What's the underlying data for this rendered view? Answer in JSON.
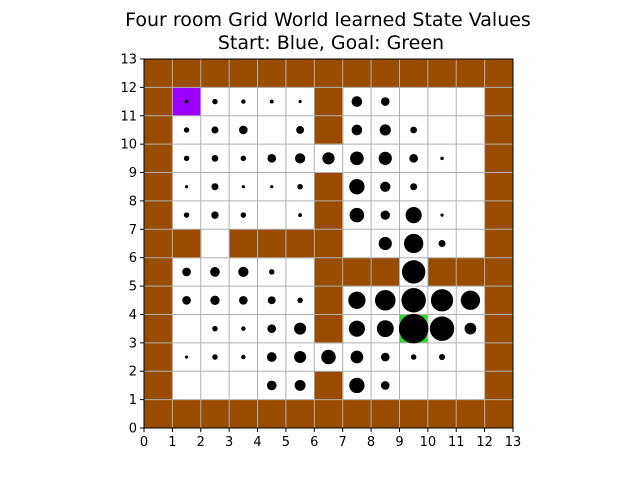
{
  "chart_data": {
    "type": "heatmap",
    "title_line1": "Four room Grid World learned State Values",
    "title_line2": "Start: Blue, Goal: Green",
    "xlim": [
      0,
      13
    ],
    "ylim": [
      0,
      13
    ],
    "x_ticks": [
      "0",
      "1",
      "2",
      "3",
      "4",
      "5",
      "6",
      "7",
      "8",
      "9",
      "10",
      "11",
      "12",
      "13"
    ],
    "y_ticks": [
      "0",
      "1",
      "2",
      "3",
      "4",
      "5",
      "6",
      "7",
      "8",
      "9",
      "10",
      "11",
      "12",
      "13"
    ],
    "grid": true,
    "colors": {
      "wall": "#994c00",
      "start": "#9b00ff",
      "goal": "#22e022",
      "gridline": "#b0b0b0",
      "marker": "#000000"
    },
    "start_cell": [
      1,
      11
    ],
    "goal_cell": [
      9,
      3
    ],
    "walls": [
      [
        0,
        0
      ],
      [
        1,
        0
      ],
      [
        2,
        0
      ],
      [
        3,
        0
      ],
      [
        4,
        0
      ],
      [
        5,
        0
      ],
      [
        6,
        0
      ],
      [
        7,
        0
      ],
      [
        8,
        0
      ],
      [
        9,
        0
      ],
      [
        10,
        0
      ],
      [
        11,
        0
      ],
      [
        12,
        0
      ],
      [
        0,
        12
      ],
      [
        1,
        12
      ],
      [
        2,
        12
      ],
      [
        3,
        12
      ],
      [
        4,
        12
      ],
      [
        5,
        12
      ],
      [
        6,
        12
      ],
      [
        7,
        12
      ],
      [
        8,
        12
      ],
      [
        9,
        12
      ],
      [
        10,
        12
      ],
      [
        11,
        12
      ],
      [
        12,
        12
      ],
      [
        0,
        1
      ],
      [
        0,
        2
      ],
      [
        0,
        3
      ],
      [
        0,
        4
      ],
      [
        0,
        5
      ],
      [
        0,
        6
      ],
      [
        0,
        7
      ],
      [
        0,
        8
      ],
      [
        0,
        9
      ],
      [
        0,
        10
      ],
      [
        0,
        11
      ],
      [
        12,
        1
      ],
      [
        12,
        2
      ],
      [
        12,
        3
      ],
      [
        12,
        4
      ],
      [
        12,
        5
      ],
      [
        12,
        6
      ],
      [
        12,
        7
      ],
      [
        12,
        8
      ],
      [
        12,
        9
      ],
      [
        12,
        10
      ],
      [
        12,
        11
      ],
      [
        6,
        11
      ],
      [
        6,
        10
      ],
      [
        6,
        8
      ],
      [
        6,
        7
      ],
      [
        6,
        6
      ],
      [
        6,
        5
      ],
      [
        6,
        4
      ],
      [
        6,
        3
      ],
      [
        6,
        1
      ],
      [
        1,
        6
      ],
      [
        3,
        6
      ],
      [
        4,
        6
      ],
      [
        5,
        6
      ],
      [
        7,
        5
      ],
      [
        8,
        5
      ],
      [
        10,
        5
      ],
      [
        11,
        5
      ]
    ],
    "values": [
      [
        1,
        11,
        0.05
      ],
      [
        2,
        11,
        0.12
      ],
      [
        3,
        11,
        0.08
      ],
      [
        4,
        11,
        0.06
      ],
      [
        5,
        11,
        0.04
      ],
      [
        7,
        11,
        0.45
      ],
      [
        8,
        11,
        0.3
      ],
      [
        1,
        10,
        0.12
      ],
      [
        2,
        10,
        0.2
      ],
      [
        3,
        10,
        0.3
      ],
      [
        5,
        10,
        0.25
      ],
      [
        7,
        10,
        0.45
      ],
      [
        8,
        10,
        0.5
      ],
      [
        9,
        10,
        0.18
      ],
      [
        1,
        9,
        0.12
      ],
      [
        2,
        9,
        0.18
      ],
      [
        3,
        9,
        0.12
      ],
      [
        4,
        9,
        0.3
      ],
      [
        5,
        9,
        0.42
      ],
      [
        6,
        9,
        0.6
      ],
      [
        7,
        9,
        0.75
      ],
      [
        8,
        9,
        0.7
      ],
      [
        9,
        9,
        0.3
      ],
      [
        10,
        9,
        0.05
      ],
      [
        1,
        8,
        0.04
      ],
      [
        2,
        8,
        0.2
      ],
      [
        3,
        8,
        0.04
      ],
      [
        4,
        8,
        0.04
      ],
      [
        5,
        8,
        0.12
      ],
      [
        7,
        8,
        0.95
      ],
      [
        8,
        8,
        0.42
      ],
      [
        9,
        8,
        0.2
      ],
      [
        1,
        7,
        0.12
      ],
      [
        2,
        7,
        0.22
      ],
      [
        3,
        7,
        0.12
      ],
      [
        5,
        7,
        0.06
      ],
      [
        7,
        7,
        0.85
      ],
      [
        8,
        7,
        0.35
      ],
      [
        9,
        7,
        1.05
      ],
      [
        10,
        7,
        0.04
      ],
      [
        8,
        6,
        0.7
      ],
      [
        9,
        6,
        1.5
      ],
      [
        10,
        6,
        0.2
      ],
      [
        1,
        5,
        0.3
      ],
      [
        2,
        5,
        0.38
      ],
      [
        3,
        5,
        0.42
      ],
      [
        4,
        5,
        0.12
      ],
      [
        9,
        5,
        2.2
      ],
      [
        1,
        4,
        0.3
      ],
      [
        2,
        4,
        0.35
      ],
      [
        3,
        4,
        0.3
      ],
      [
        4,
        4,
        0.25
      ],
      [
        5,
        4,
        0.12
      ],
      [
        7,
        4,
        1.2
      ],
      [
        8,
        4,
        1.7
      ],
      [
        9,
        4,
        2.4
      ],
      [
        10,
        4,
        2.0
      ],
      [
        11,
        4,
        1.5
      ],
      [
        2,
        3,
        0.12
      ],
      [
        3,
        3,
        0.08
      ],
      [
        4,
        3,
        0.3
      ],
      [
        5,
        3,
        0.58
      ],
      [
        7,
        3,
        1.05
      ],
      [
        8,
        3,
        1.15
      ],
      [
        9,
        3,
        3.5
      ],
      [
        10,
        3,
        2.4
      ],
      [
        11,
        3,
        0.55
      ],
      [
        1,
        2,
        0.04
      ],
      [
        2,
        2,
        0.12
      ],
      [
        3,
        2,
        0.08
      ],
      [
        4,
        2,
        0.38
      ],
      [
        5,
        2,
        0.58
      ],
      [
        6,
        2,
        0.85
      ],
      [
        7,
        2,
        0.65
      ],
      [
        8,
        2,
        0.3
      ],
      [
        9,
        2,
        0.12
      ],
      [
        10,
        2,
        0.15
      ],
      [
        4,
        1,
        0.38
      ],
      [
        5,
        1,
        0.48
      ],
      [
        7,
        1,
        0.95
      ],
      [
        8,
        1,
        0.3
      ]
    ]
  }
}
